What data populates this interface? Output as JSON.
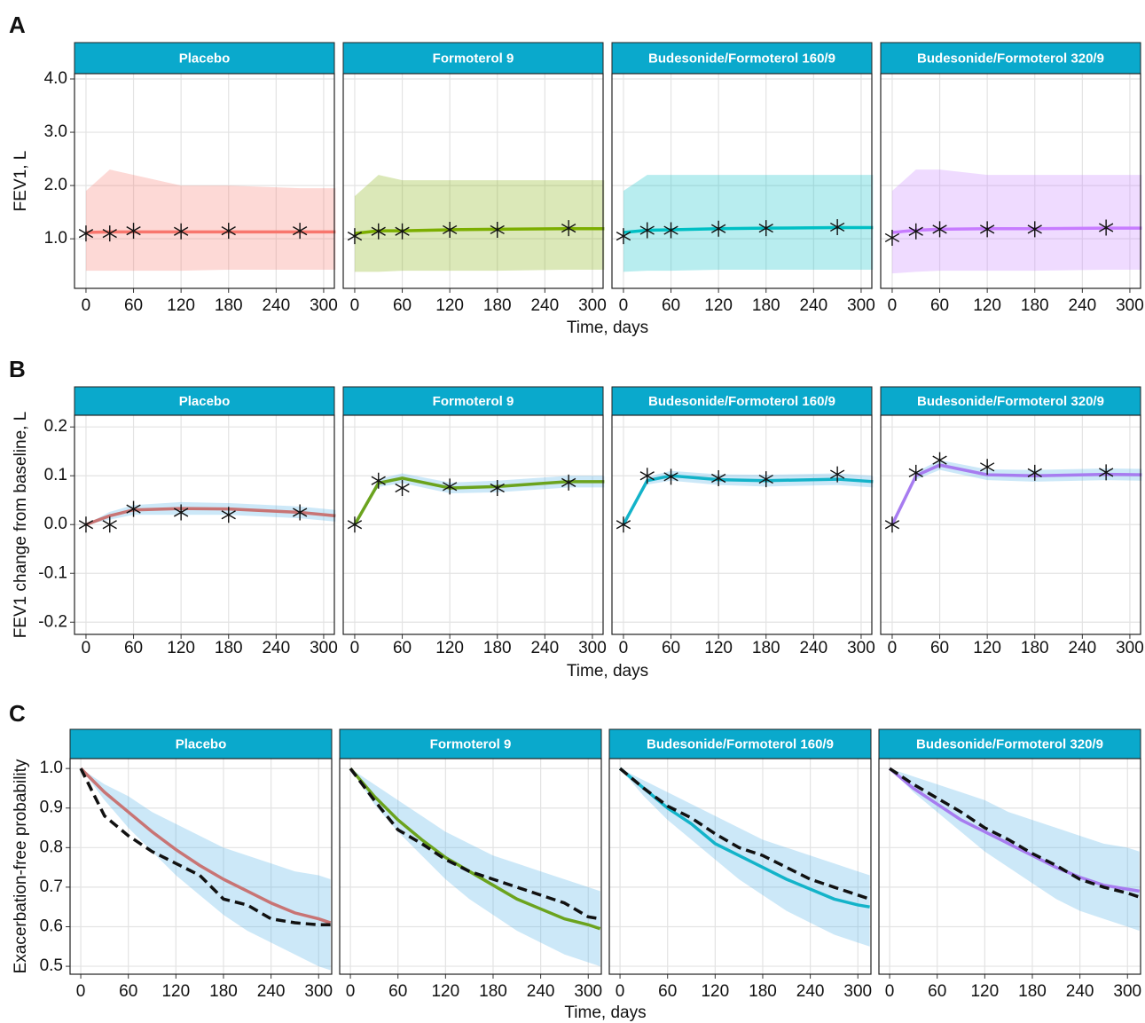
{
  "chart_data": [
    {
      "type": "line",
      "panel": "A",
      "ylabel": "FEV1, L",
      "xlabel": "Time, days",
      "xlim": [
        -14.5,
        313.5
      ],
      "xticks": [
        0,
        60,
        120,
        180,
        240,
        300
      ],
      "ylim": [
        0.07,
        4.1
      ],
      "yticks": [
        {
          "value": 1,
          "label": "1.0"
        },
        {
          "value": 2,
          "label": "2.0"
        },
        {
          "value": 3,
          "label": "3.0"
        },
        {
          "value": 4,
          "label": "4.0"
        }
      ],
      "grid": true,
      "observed_style": "star",
      "band_color": "facet",
      "x_observed": [
        0,
        30,
        60,
        120,
        180,
        270
      ],
      "x_model": [
        0,
        30,
        60,
        120,
        180,
        270,
        315
      ],
      "facets": [
        {
          "title": "Placebo",
          "color": "#F8766D",
          "observed": [
            1.1,
            1.1,
            1.15,
            1.14,
            1.15,
            1.15
          ],
          "model": [
            1.12,
            1.13,
            1.13,
            1.13,
            1.13,
            1.13,
            1.13
          ],
          "lower": [
            0.4,
            0.4,
            0.4,
            0.4,
            0.42,
            0.42,
            0.42
          ],
          "upper": [
            1.9,
            2.3,
            2.2,
            2.0,
            2.0,
            1.95,
            1.95
          ]
        },
        {
          "title": "Formoterol 9",
          "color": "#7CAE00",
          "observed": [
            1.05,
            1.14,
            1.14,
            1.17,
            1.17,
            1.2
          ],
          "model": [
            1.1,
            1.15,
            1.15,
            1.17,
            1.18,
            1.19,
            1.19
          ],
          "lower": [
            0.38,
            0.38,
            0.4,
            0.4,
            0.4,
            0.42,
            0.42
          ],
          "upper": [
            1.8,
            2.2,
            2.1,
            2.1,
            2.1,
            2.1,
            2.1
          ]
        },
        {
          "title": "Budesonide/Formoterol 160/9",
          "color": "#00BFC4",
          "observed": [
            1.05,
            1.16,
            1.16,
            1.19,
            1.2,
            1.22
          ],
          "model": [
            1.12,
            1.16,
            1.17,
            1.19,
            1.2,
            1.21,
            1.21
          ],
          "lower": [
            0.38,
            0.4,
            0.4,
            0.42,
            0.42,
            0.42,
            0.42
          ],
          "upper": [
            1.9,
            2.2,
            2.2,
            2.2,
            2.2,
            2.2,
            2.2
          ]
        },
        {
          "title": "Budesonide/Formoterol 320/9",
          "color": "#C77CFF",
          "observed": [
            1.02,
            1.14,
            1.18,
            1.18,
            1.18,
            1.21
          ],
          "model": [
            1.12,
            1.16,
            1.18,
            1.19,
            1.19,
            1.2,
            1.2
          ],
          "lower": [
            0.35,
            0.38,
            0.4,
            0.4,
            0.4,
            0.42,
            0.42
          ],
          "upper": [
            1.9,
            2.3,
            2.3,
            2.2,
            2.2,
            2.2,
            2.2
          ]
        }
      ]
    },
    {
      "type": "line",
      "panel": "B",
      "ylabel": "FEV1 change from baseline, L",
      "xlabel": "Time, days",
      "xlim": [
        -14.5,
        313.5
      ],
      "xticks": [
        0,
        60,
        120,
        180,
        240,
        300
      ],
      "ylim": [
        -0.225,
        0.224
      ],
      "yticks": [
        0.2,
        0.1,
        {
          "value": 0,
          "label": "0.0"
        },
        -0.1,
        -0.2
      ],
      "grid": true,
      "observed_style": "star",
      "band_color": "#56B4E9",
      "x_observed": [
        0,
        30,
        60,
        120,
        180,
        270
      ],
      "x_model": [
        0,
        30,
        60,
        120,
        180,
        270,
        315
      ],
      "facets": [
        {
          "title": "Placebo",
          "color": "#C87474",
          "observed": [
            0,
            0,
            0.032,
            0.025,
            0.02,
            0.025
          ],
          "model": [
            0,
            0.018,
            0.03,
            0.033,
            0.032,
            0.025,
            0.018
          ],
          "lower": [
            0,
            0.01,
            0.02,
            0.02,
            0.02,
            0.013,
            0.006
          ],
          "upper": [
            0,
            0.026,
            0.04,
            0.046,
            0.044,
            0.037,
            0.03
          ]
        },
        {
          "title": "Formoterol 9",
          "color": "#6BA31E",
          "observed": [
            0,
            0.09,
            0.075,
            0.078,
            0.075,
            0.086
          ],
          "model": [
            0,
            0.085,
            0.095,
            0.075,
            0.078,
            0.088,
            0.088
          ],
          "lower": [
            0,
            0.077,
            0.085,
            0.064,
            0.066,
            0.076,
            0.076
          ],
          "upper": [
            0,
            0.093,
            0.105,
            0.086,
            0.09,
            0.1,
            0.1
          ]
        },
        {
          "title": "Budesonide/Formoterol 160/9",
          "color": "#13B3C9",
          "observed": [
            0,
            0.1,
            0.098,
            0.095,
            0.093,
            0.103
          ],
          "model": [
            0,
            0.09,
            0.1,
            0.092,
            0.09,
            0.093,
            0.088
          ],
          "lower": [
            0,
            0.082,
            0.09,
            0.081,
            0.078,
            0.081,
            0.076
          ],
          "upper": [
            0,
            0.098,
            0.11,
            0.103,
            0.102,
            0.105,
            0.1
          ]
        },
        {
          "title": "Budesonide/Formoterol 320/9",
          "color": "#A77CF0",
          "observed": [
            0,
            0.106,
            0.132,
            0.118,
            0.106,
            0.107
          ],
          "model": [
            0,
            0.1,
            0.122,
            0.102,
            0.1,
            0.103,
            0.102
          ],
          "lower": [
            0,
            0.092,
            0.112,
            0.091,
            0.088,
            0.091,
            0.09
          ],
          "upper": [
            0,
            0.108,
            0.132,
            0.113,
            0.112,
            0.115,
            0.114
          ]
        }
      ]
    },
    {
      "type": "line",
      "panel": "C",
      "ylabel": "Exacerbation-free probability",
      "xlabel": "Time, days",
      "xlim": [
        -13.5,
        316.5
      ],
      "xticks": [
        0,
        60,
        120,
        180,
        240,
        300
      ],
      "ylim": [
        0.48,
        1.025
      ],
      "yticks": [
        0.5,
        0.6,
        0.7,
        0.8,
        0.9,
        {
          "value": 1,
          "label": "1.0"
        }
      ],
      "grid": true,
      "observed_style": "dashed",
      "band_color": "#56B4E9",
      "x_observed": [
        0,
        30,
        60,
        90,
        120,
        150,
        180,
        210,
        240,
        270,
        300,
        315
      ],
      "x_model": [
        0,
        30,
        60,
        90,
        120,
        150,
        180,
        210,
        240,
        270,
        300,
        315
      ],
      "facets": [
        {
          "title": "Placebo",
          "color": "#C87474",
          "observed": [
            1.0,
            0.88,
            0.83,
            0.79,
            0.76,
            0.73,
            0.67,
            0.655,
            0.62,
            0.61,
            0.605,
            0.605
          ],
          "model": [
            1.0,
            0.94,
            0.89,
            0.84,
            0.795,
            0.755,
            0.72,
            0.69,
            0.66,
            0.635,
            0.62,
            0.61
          ],
          "lower": [
            1.0,
            0.92,
            0.85,
            0.79,
            0.73,
            0.68,
            0.63,
            0.59,
            0.56,
            0.53,
            0.5,
            0.49
          ],
          "upper": [
            1.0,
            0.96,
            0.93,
            0.89,
            0.86,
            0.83,
            0.8,
            0.78,
            0.76,
            0.74,
            0.73,
            0.72
          ]
        },
        {
          "title": "Formoterol 9",
          "color": "#6BA31E",
          "observed": [
            1.0,
            0.92,
            0.845,
            0.81,
            0.77,
            0.74,
            0.72,
            0.7,
            0.68,
            0.66,
            0.625,
            0.62
          ],
          "model": [
            1.0,
            0.93,
            0.87,
            0.82,
            0.775,
            0.74,
            0.705,
            0.67,
            0.645,
            0.62,
            0.605,
            0.595
          ],
          "lower": [
            1.0,
            0.91,
            0.84,
            0.78,
            0.72,
            0.67,
            0.63,
            0.59,
            0.56,
            0.53,
            0.51,
            0.5
          ],
          "upper": [
            1.0,
            0.96,
            0.92,
            0.88,
            0.84,
            0.81,
            0.78,
            0.76,
            0.74,
            0.72,
            0.7,
            0.69
          ]
        },
        {
          "title": "Budesonide/Formoterol 160/9",
          "color": "#13B3C9",
          "observed": [
            1.0,
            0.95,
            0.905,
            0.875,
            0.835,
            0.8,
            0.78,
            0.75,
            0.72,
            0.7,
            0.68,
            0.67
          ],
          "model": [
            1.0,
            0.95,
            0.9,
            0.86,
            0.81,
            0.78,
            0.75,
            0.72,
            0.695,
            0.67,
            0.655,
            0.65
          ],
          "lower": [
            1.0,
            0.93,
            0.87,
            0.82,
            0.77,
            0.72,
            0.68,
            0.64,
            0.61,
            0.58,
            0.56,
            0.55
          ],
          "upper": [
            1.0,
            0.97,
            0.94,
            0.91,
            0.88,
            0.85,
            0.82,
            0.8,
            0.78,
            0.76,
            0.74,
            0.73
          ]
        },
        {
          "title": "Budesonide/Formoterol 320/9",
          "color": "#A77CF0",
          "observed": [
            1.0,
            0.96,
            0.925,
            0.89,
            0.85,
            0.82,
            0.785,
            0.755,
            0.72,
            0.7,
            0.685,
            0.675
          ],
          "model": [
            1.0,
            0.95,
            0.91,
            0.87,
            0.84,
            0.81,
            0.78,
            0.75,
            0.725,
            0.705,
            0.695,
            0.69
          ],
          "lower": [
            1.0,
            0.94,
            0.89,
            0.84,
            0.79,
            0.75,
            0.71,
            0.67,
            0.64,
            0.62,
            0.6,
            0.59
          ],
          "upper": [
            1.0,
            0.98,
            0.96,
            0.94,
            0.92,
            0.89,
            0.87,
            0.85,
            0.83,
            0.81,
            0.8,
            0.79
          ]
        }
      ]
    }
  ]
}
